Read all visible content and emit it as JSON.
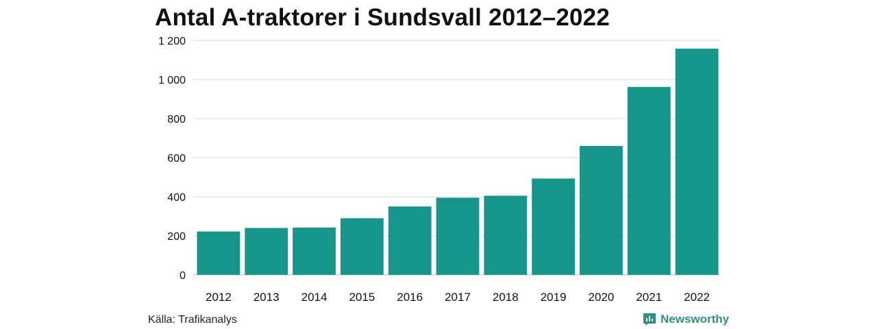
{
  "title": "Antal A-traktorer i Sundsvall 2012–2022",
  "source": "Källa: Trafikanalys",
  "brand": {
    "name": "Newsworthy",
    "icon": "bar-chart-speech-bubble-icon",
    "color": "#2f8f84"
  },
  "colors": {
    "bar": "#16968a",
    "grid": "#d9d9d9",
    "axis": "#bbbbbb",
    "text": "#111111"
  },
  "chart_data": {
    "type": "bar",
    "title": "Antal A-traktorer i Sundsvall 2012–2022",
    "categories": [
      "2012",
      "2013",
      "2014",
      "2015",
      "2016",
      "2017",
      "2018",
      "2019",
      "2020",
      "2021",
      "2022"
    ],
    "values": [
      222,
      240,
      242,
      290,
      350,
      395,
      405,
      493,
      660,
      962,
      1158
    ],
    "ylim": [
      0,
      1200
    ],
    "yticks": [
      0,
      200,
      400,
      600,
      800,
      1000,
      1200
    ],
    "ytick_labels": [
      "0",
      "200",
      "400",
      "600",
      "800",
      "1 000",
      "1 200"
    ],
    "grid": true,
    "xlabel": "",
    "ylabel": ""
  }
}
